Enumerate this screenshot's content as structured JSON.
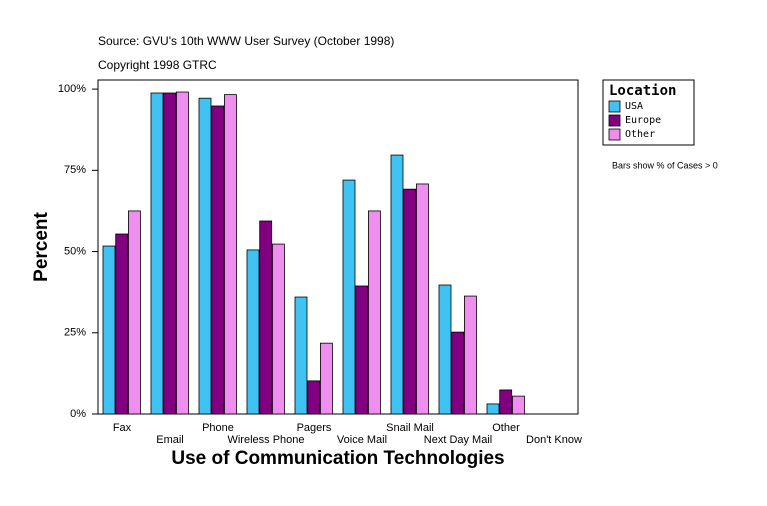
{
  "chart_data": {
    "type": "bar",
    "title": "Source: GVU's 10th WWW User Survey (October 1998)",
    "subtitle": "Copyright 1998 GTRC",
    "x_label": "Use of Communication Technologies",
    "y_label": "Percent",
    "annotation": "Bars show % of Cases > 0",
    "legend_title": "Location",
    "categories": [
      "Fax",
      "Email",
      "Phone",
      "Wireless Phone",
      "Pagers",
      "Voice Mail",
      "Snail Mail",
      "Next Day Mail",
      "Other",
      "Don't Know"
    ],
    "series": [
      {
        "name": "USA",
        "color": "#3ec3f2",
        "values": [
          51.7,
          98.8,
          97.2,
          50.5,
          36.0,
          72.0,
          79.7,
          39.7,
          3.1,
          0
        ]
      },
      {
        "name": "Europe",
        "color": "#800080",
        "values": [
          55.4,
          98.8,
          94.8,
          59.4,
          10.2,
          39.4,
          69.2,
          25.2,
          7.4,
          0
        ]
      },
      {
        "name": "Other",
        "color": "#f08ef0",
        "values": [
          62.5,
          99.1,
          98.3,
          52.3,
          21.8,
          62.5,
          70.8,
          36.3,
          5.5,
          0
        ]
      }
    ],
    "ylim": [
      0,
      102.8
    ],
    "yticks": [
      {
        "value": 0,
        "label": "0%"
      },
      {
        "value": 25,
        "label": "25%"
      },
      {
        "value": 50,
        "label": "50%"
      },
      {
        "value": 75,
        "label": "75%"
      },
      {
        "value": 100,
        "label": "100%"
      }
    ]
  }
}
